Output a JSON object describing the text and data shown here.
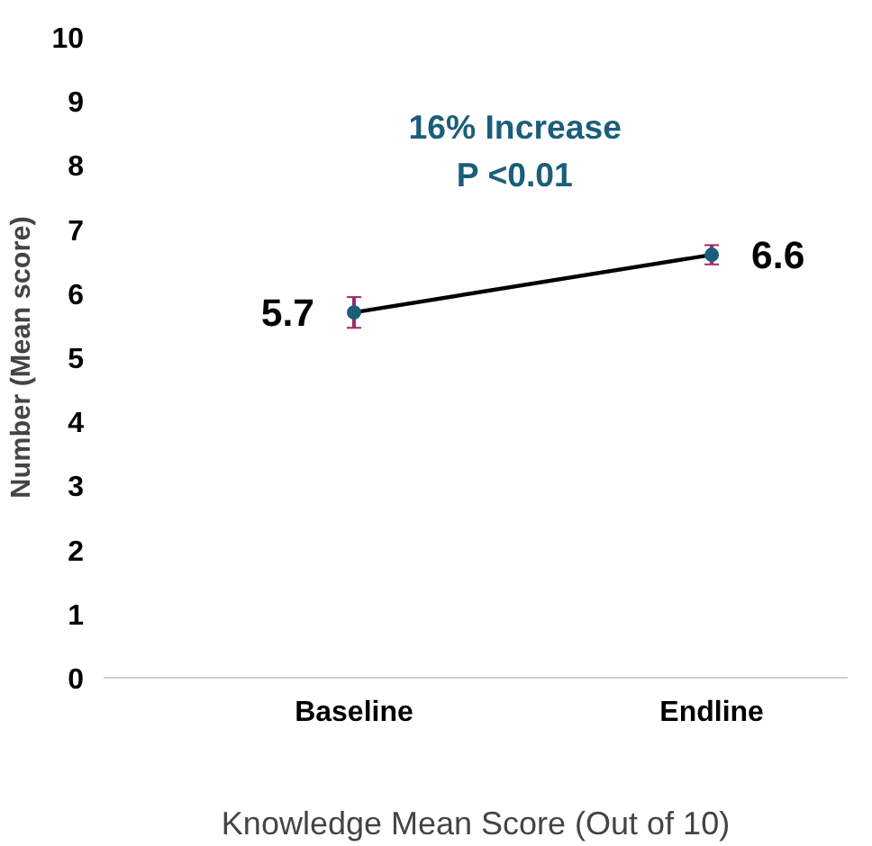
{
  "chart_data": {
    "type": "line",
    "xlabel": "Knowledge Mean Score (Out of 10)",
    "ylabel": "Number (Mean score)",
    "categories": [
      "Baseline",
      "Endline"
    ],
    "series": [
      {
        "color": "#000000",
        "values": [
          5.7,
          6.6
        ],
        "errors": [
          0.24,
          0.15
        ],
        "value_labels": [
          "5.7",
          "6.6"
        ]
      }
    ],
    "ylim": [
      0,
      10
    ],
    "yticks": [
      0,
      1,
      2,
      3,
      4,
      5,
      6,
      7,
      8,
      9,
      10
    ],
    "annotations": [
      "16% Increase",
      "P <0.01"
    ],
    "marker": "circle",
    "line_style": "solid",
    "grid": false
  }
}
